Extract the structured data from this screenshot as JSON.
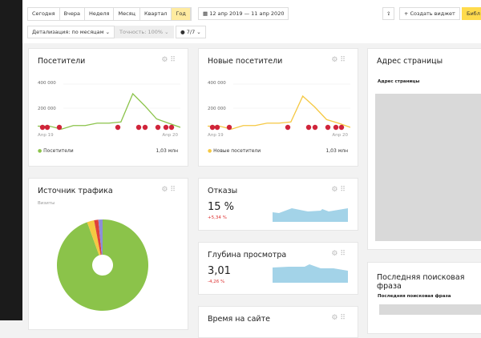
{
  "toolbar": {
    "periods": [
      "Сегодня",
      "Вчера",
      "Неделя",
      "Месяц",
      "Квартал",
      "Год"
    ],
    "active_period": "Год",
    "date_range": "12 апр 2019 — 11 апр 2020",
    "create_widget": "+ Создать виджет",
    "library": "Библ",
    "detail": "Детализация: по месяцам",
    "accuracy": "Точность: 100%",
    "segments": "7/7"
  },
  "visitors": {
    "title": "Посетители",
    "y_ticks": [
      "400 000",
      "200 000"
    ],
    "x_start": "Апр 19",
    "x_end": "Апр 20",
    "legend": "Посетители",
    "total": "1,03 млн",
    "color": "#8bc34a"
  },
  "new_visitors": {
    "title": "Новые посетители",
    "y_ticks": [
      "400 000",
      "200 000"
    ],
    "x_start": "Апр 19",
    "x_end": "Апр 20",
    "legend": "Новые посетители",
    "total": "1,03 млн",
    "color": "#f5c842"
  },
  "chart_data": [
    {
      "type": "line",
      "title": "Посетители",
      "ylim": [
        0,
        400000
      ],
      "values": [
        50000,
        50000,
        25000,
        55000,
        55000,
        75000,
        75000,
        85000,
        320000,
        220000,
        110000,
        75000,
        40000
      ]
    },
    {
      "type": "line",
      "title": "Новые посетители",
      "ylim": [
        0,
        400000
      ],
      "values": [
        50000,
        50000,
        25000,
        55000,
        55000,
        75000,
        75000,
        85000,
        300000,
        210000,
        105000,
        75000,
        40000
      ]
    },
    {
      "type": "pie",
      "title": "Источник трафика",
      "subtitle": "Визиты",
      "values": [
        94.5,
        2.5,
        1.5,
        1.5
      ],
      "colors": [
        "#8bc34a",
        "#f5c842",
        "#e0403a",
        "#8e8ed8"
      ]
    }
  ],
  "traffic": {
    "title": "Источник трафика",
    "subtitle": "Визиты"
  },
  "bounce": {
    "title": "Отказы",
    "value": "15 %",
    "delta": "+5,34 %"
  },
  "depth": {
    "title": "Глубина просмотра",
    "value": "3,01",
    "delta": "-4,26 %"
  },
  "time": {
    "title": "Время на сайте"
  },
  "page_address": {
    "title": "Адрес страницы",
    "column": "Адрес страницы"
  },
  "search_phrase": {
    "title": "Последняя поисковая фраза",
    "column": "Последняя поисковая фраза"
  }
}
